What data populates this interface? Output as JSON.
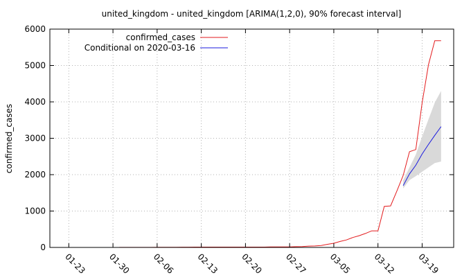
{
  "chart_data": {
    "type": "line",
    "title": "united_kingdom - united_kingdom [ARIMA(1,2,0), 90% forecast interval]",
    "xlabel": "",
    "ylabel": "confirmed_cases",
    "ylim": [
      0,
      6000
    ],
    "y_ticks": [
      0,
      1000,
      2000,
      3000,
      4000,
      5000,
      6000
    ],
    "y_tick_labels": [
      "0",
      "1000",
      "2000",
      "3000",
      "4000",
      "5000",
      "6000"
    ],
    "x_range": [
      "2020-01-20",
      "2020-03-24"
    ],
    "x_ticks": [
      "2020-01-23",
      "2020-01-30",
      "2020-02-06",
      "2020-02-13",
      "2020-02-20",
      "2020-02-27",
      "2020-03-05",
      "2020-03-12",
      "2020-03-19"
    ],
    "x_tick_labels": [
      "01-23",
      "01-30",
      "02-06",
      "02-13",
      "02-20",
      "02-27",
      "03-05",
      "03-12",
      "03-19"
    ],
    "grid": "dotted vertical and horizontal at ticks",
    "legend_position": "top-left",
    "series": [
      {
        "name": "confirmed_cases",
        "color": "#e31a1c",
        "x": [
          "2020-01-31",
          "2020-02-01",
          "2020-02-02",
          "2020-02-03",
          "2020-02-04",
          "2020-02-05",
          "2020-02-06",
          "2020-02-07",
          "2020-02-08",
          "2020-02-09",
          "2020-02-10",
          "2020-02-11",
          "2020-02-12",
          "2020-02-13",
          "2020-02-14",
          "2020-02-15",
          "2020-02-16",
          "2020-02-17",
          "2020-02-18",
          "2020-02-19",
          "2020-02-20",
          "2020-02-21",
          "2020-02-22",
          "2020-02-23",
          "2020-02-24",
          "2020-02-25",
          "2020-02-26",
          "2020-02-27",
          "2020-02-28",
          "2020-02-29",
          "2020-03-01",
          "2020-03-02",
          "2020-03-03",
          "2020-03-04",
          "2020-03-05",
          "2020-03-06",
          "2020-03-07",
          "2020-03-08",
          "2020-03-09",
          "2020-03-10",
          "2020-03-11",
          "2020-03-12",
          "2020-03-13",
          "2020-03-14",
          "2020-03-15",
          "2020-03-16",
          "2020-03-17",
          "2020-03-18",
          "2020-03-19",
          "2020-03-20",
          "2020-03-21",
          "2020-03-22"
        ],
        "values": [
          2,
          2,
          2,
          2,
          2,
          2,
          3,
          3,
          3,
          3,
          8,
          8,
          9,
          9,
          9,
          9,
          9,
          9,
          9,
          9,
          9,
          9,
          9,
          9,
          13,
          13,
          13,
          15,
          20,
          23,
          36,
          40,
          51,
          85,
          115,
          163,
          206,
          273,
          321,
          382,
          456,
          456,
          1130,
          1140,
          1550,
          1980,
          2630,
          2690,
          3980,
          5020,
          5680,
          5680
        ]
      },
      {
        "name": "Conditional on 2020-03-16",
        "color": "#1a1adf",
        "x": [
          "2020-03-16",
          "2020-03-17",
          "2020-03-18",
          "2020-03-19",
          "2020-03-20",
          "2020-03-21",
          "2020-03-22"
        ],
        "values": [
          1700,
          2020,
          2260,
          2570,
          2830,
          3080,
          3320
        ]
      }
    ],
    "forecast_interval": {
      "label": "90% forecast interval",
      "color": "#d9d9d9",
      "x": [
        "2020-03-16",
        "2020-03-17",
        "2020-03-18",
        "2020-03-19",
        "2020-03-20",
        "2020-03-21",
        "2020-03-22"
      ],
      "lower": [
        1620,
        1850,
        1960,
        2080,
        2200,
        2320,
        2360
      ],
      "upper": [
        1850,
        2200,
        2550,
        3050,
        3520,
        3980,
        4300
      ]
    }
  }
}
